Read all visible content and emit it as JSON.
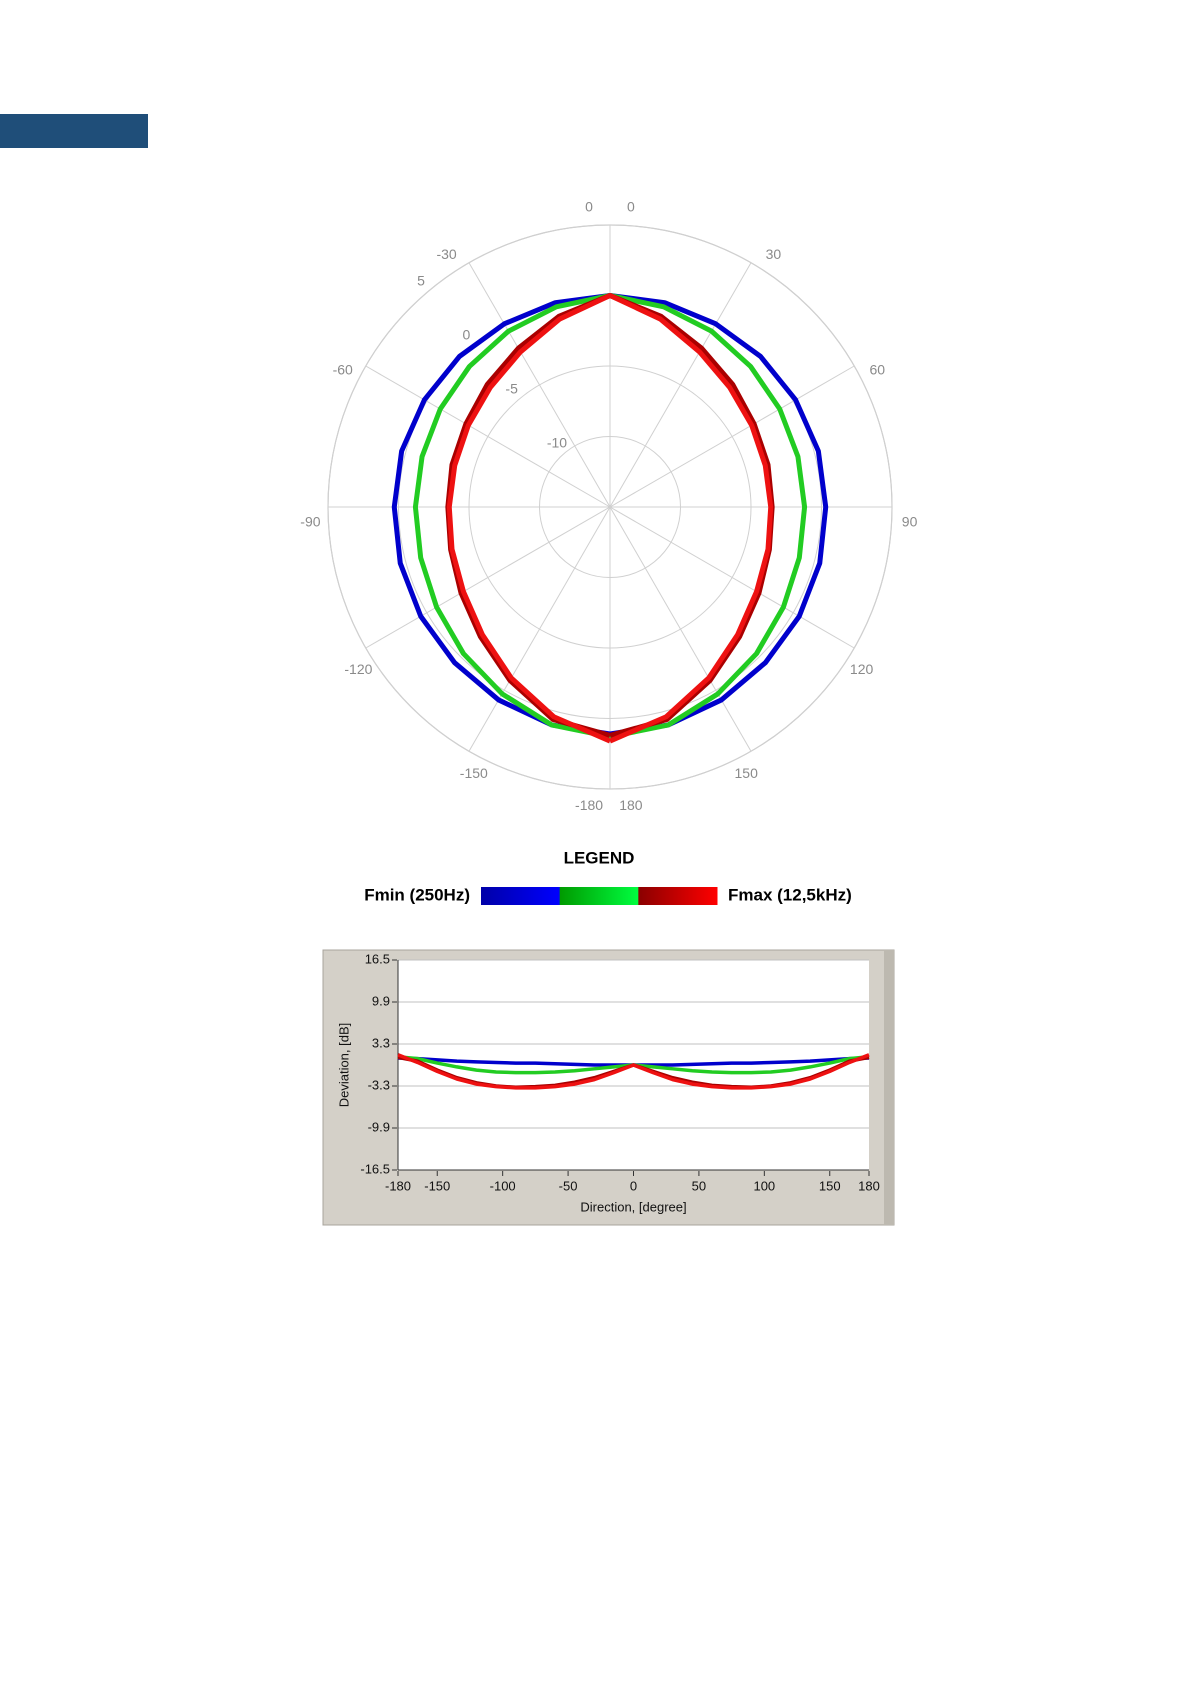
{
  "chart_data": [
    {
      "type": "polar",
      "theta": [
        -180,
        -165,
        -150,
        -135,
        -120,
        -105,
        -90,
        -75,
        -60,
        -45,
        -30,
        -15,
        0,
        15,
        30,
        45,
        60,
        75,
        90,
        105,
        120,
        135,
        150,
        165,
        180
      ],
      "rlim": [
        -15,
        5
      ],
      "rticks": [
        -10,
        -5,
        0,
        5
      ],
      "thetaticks": [
        -180,
        -150,
        -120,
        -90,
        -60,
        -30,
        0,
        0,
        30,
        60,
        90,
        120,
        150,
        180
      ],
      "grid": true,
      "series": [
        {
          "color": "#0000cc",
          "values": [
            1.1,
            1,
            0.8,
            0.6,
            0.5,
            0.4,
            0.3,
            0.3,
            0.2,
            0.1,
            0,
            0,
            0,
            0,
            0,
            0.1,
            0.2,
            0.3,
            0.3,
            0.4,
            0.5,
            0.6,
            0.8,
            1,
            1.1
          ]
        },
        {
          "color": "#22cc22",
          "values": [
            1.3,
            1,
            0.3,
            -0.3,
            -0.8,
            -1.1,
            -1.2,
            -1.2,
            -1.1,
            -0.9,
            -0.6,
            -0.3,
            0,
            -0.3,
            -0.6,
            -0.9,
            -1.1,
            -1.2,
            -1.2,
            -1.1,
            -0.8,
            -0.3,
            0.3,
            1,
            1.3
          ]
        },
        {
          "color": "#aa0000",
          "values": [
            1.2,
            0.6,
            -0.8,
            -2,
            -2.8,
            -3.3,
            -3.5,
            -3.4,
            -3.2,
            -2.7,
            -2,
            -1,
            0,
            -1,
            -2,
            -2.7,
            -3.2,
            -3.4,
            -3.5,
            -3.3,
            -2.8,
            -2,
            -0.8,
            0.6,
            1.2
          ]
        },
        {
          "color": "#ee1111",
          "values": [
            1.6,
            0.4,
            -1,
            -2.2,
            -3,
            -3.4,
            -3.6,
            -3.6,
            -3.4,
            -3,
            -2.3,
            -1.2,
            0,
            -1.2,
            -2.3,
            -3,
            -3.4,
            -3.6,
            -3.6,
            -3.4,
            -3,
            -2.2,
            -1,
            0.4,
            1.6
          ]
        }
      ],
      "legend": {
        "title": "LEGEND",
        "min_label": "Fmin (250Hz)",
        "max_label": "Fmax (12,5kHz)",
        "colors": [
          "#0000a8",
          "#0000ff",
          "#009a00",
          "#00ff40",
          "#8a0000",
          "#ff0000"
        ]
      }
    },
    {
      "type": "line",
      "x": [
        -180,
        -165,
        -150,
        -135,
        -120,
        -105,
        -90,
        -75,
        -60,
        -45,
        -30,
        -15,
        0,
        15,
        30,
        45,
        60,
        75,
        90,
        105,
        120,
        135,
        150,
        165,
        180
      ],
      "xlabel": "Direction, [degree]",
      "ylabel": "Deviation, [dB]",
      "xlim": [
        -180,
        180
      ],
      "xticks": [
        -180,
        -150,
        -100,
        -50,
        0,
        50,
        100,
        150,
        180
      ],
      "ylim": [
        -16.5,
        16.5
      ],
      "yticks": [
        16.5,
        9.9,
        3.3,
        -3.3,
        -9.9,
        -16.5
      ],
      "grid": true,
      "series": [
        {
          "color": "#0000cc",
          "values": [
            1.1,
            1,
            0.8,
            0.6,
            0.5,
            0.4,
            0.3,
            0.3,
            0.2,
            0.1,
            0,
            0,
            0,
            0,
            0,
            0.1,
            0.2,
            0.3,
            0.3,
            0.4,
            0.5,
            0.6,
            0.8,
            1,
            1.1
          ]
        },
        {
          "color": "#22cc22",
          "values": [
            1.3,
            1,
            0.3,
            -0.3,
            -0.8,
            -1.1,
            -1.2,
            -1.2,
            -1.1,
            -0.9,
            -0.6,
            -0.3,
            0,
            -0.3,
            -0.6,
            -0.9,
            -1.1,
            -1.2,
            -1.2,
            -1.1,
            -0.8,
            -0.3,
            0.3,
            1,
            1.3
          ]
        },
        {
          "color": "#aa0000",
          "values": [
            1.2,
            0.6,
            -0.8,
            -2,
            -2.8,
            -3.3,
            -3.5,
            -3.4,
            -3.2,
            -2.7,
            -2,
            -1,
            0,
            -1,
            -2,
            -2.7,
            -3.2,
            -3.4,
            -3.5,
            -3.3,
            -2.8,
            -2,
            -0.8,
            0.6,
            1.2
          ]
        },
        {
          "color": "#ee1111",
          "values": [
            1.6,
            0.4,
            -1,
            -2.2,
            -3,
            -3.4,
            -3.6,
            -3.6,
            -3.4,
            -3,
            -2.3,
            -1.2,
            0,
            -1.2,
            -2.3,
            -3,
            -3.4,
            -3.6,
            -3.6,
            -3.4,
            -3,
            -2.2,
            -1,
            0.4,
            1.6
          ]
        }
      ]
    }
  ]
}
